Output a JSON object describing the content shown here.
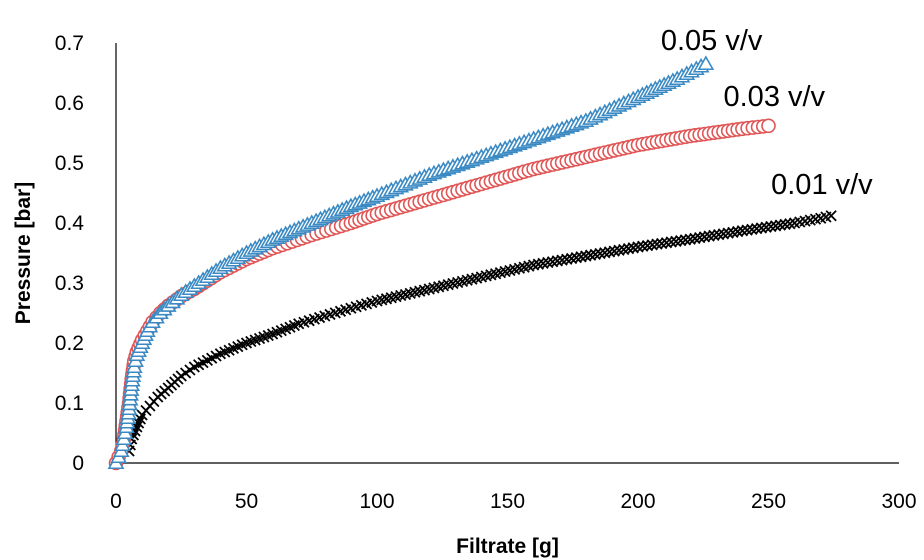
{
  "chart_data": {
    "type": "scatter",
    "title": "",
    "xlabel": "Filtrate [g]",
    "ylabel": "Pressure [bar]",
    "xlim": [
      0,
      300
    ],
    "ylim": [
      0,
      0.7
    ],
    "xticks": [
      "0",
      "50",
      "100",
      "150",
      "200",
      "250",
      "300"
    ],
    "yticks": [
      "0",
      "0.1",
      "0.2",
      "0.3",
      "0.4",
      "0.5",
      "0.6",
      "0.7"
    ],
    "grid": false,
    "legend": "none",
    "series": [
      {
        "name": "0.05 v/v",
        "marker": "triangle-open",
        "color": "#3b8ac4",
        "points": [
          [
            0,
            0.0
          ],
          [
            1,
            0.01
          ],
          [
            2,
            0.02
          ],
          [
            3,
            0.04
          ],
          [
            4,
            0.06
          ],
          [
            5,
            0.09
          ],
          [
            6,
            0.13
          ],
          [
            7,
            0.16
          ],
          [
            8,
            0.18
          ],
          [
            10,
            0.2
          ],
          [
            12,
            0.22
          ],
          [
            14,
            0.235
          ],
          [
            17,
            0.25
          ],
          [
            20,
            0.262
          ],
          [
            25,
            0.28
          ],
          [
            30,
            0.295
          ],
          [
            40,
            0.325
          ],
          [
            50,
            0.35
          ],
          [
            60,
            0.372
          ],
          [
            75,
            0.4
          ],
          [
            90,
            0.428
          ],
          [
            100,
            0.445
          ],
          [
            120,
            0.48
          ],
          [
            140,
            0.51
          ],
          [
            160,
            0.54
          ],
          [
            180,
            0.57
          ],
          [
            200,
            0.61
          ],
          [
            215,
            0.64
          ],
          [
            226,
            0.665
          ]
        ]
      },
      {
        "name": "0.03 v/v",
        "marker": "circle-open",
        "color": "#e05555",
        "points": [
          [
            0,
            0.0
          ],
          [
            1,
            0.01
          ],
          [
            2,
            0.02
          ],
          [
            3,
            0.04
          ],
          [
            4,
            0.07
          ],
          [
            5,
            0.1
          ],
          [
            6,
            0.14
          ],
          [
            7,
            0.17
          ],
          [
            8,
            0.185
          ],
          [
            10,
            0.205
          ],
          [
            12,
            0.22
          ],
          [
            14,
            0.235
          ],
          [
            17,
            0.25
          ],
          [
            20,
            0.262
          ],
          [
            25,
            0.278
          ],
          [
            30,
            0.29
          ],
          [
            40,
            0.318
          ],
          [
            50,
            0.34
          ],
          [
            60,
            0.358
          ],
          [
            75,
            0.38
          ],
          [
            90,
            0.4
          ],
          [
            100,
            0.415
          ],
          [
            120,
            0.44
          ],
          [
            140,
            0.465
          ],
          [
            160,
            0.49
          ],
          [
            180,
            0.51
          ],
          [
            200,
            0.53
          ],
          [
            220,
            0.545
          ],
          [
            240,
            0.557
          ],
          [
            250,
            0.562
          ]
        ]
      },
      {
        "name": "0.01 v/v",
        "marker": "x",
        "color": "#000000",
        "points": [
          [
            5,
            0.02
          ],
          [
            6,
            0.04
          ],
          [
            8,
            0.06
          ],
          [
            10,
            0.08
          ],
          [
            13,
            0.095
          ],
          [
            16,
            0.11
          ],
          [
            20,
            0.125
          ],
          [
            25,
            0.145
          ],
          [
            30,
            0.16
          ],
          [
            40,
            0.182
          ],
          [
            50,
            0.2
          ],
          [
            60,
            0.215
          ],
          [
            70,
            0.232
          ],
          [
            80,
            0.245
          ],
          [
            90,
            0.258
          ],
          [
            100,
            0.27
          ],
          [
            120,
            0.29
          ],
          [
            140,
            0.31
          ],
          [
            160,
            0.33
          ],
          [
            180,
            0.345
          ],
          [
            200,
            0.36
          ],
          [
            220,
            0.373
          ],
          [
            240,
            0.387
          ],
          [
            260,
            0.4
          ],
          [
            270,
            0.408
          ],
          [
            274,
            0.412
          ]
        ]
      }
    ],
    "annotations": [
      {
        "text": "0.05 v/v",
        "series": 0
      },
      {
        "text": "0.03 v/v",
        "series": 1
      },
      {
        "text": "0.01 v/v",
        "series": 2
      }
    ]
  }
}
